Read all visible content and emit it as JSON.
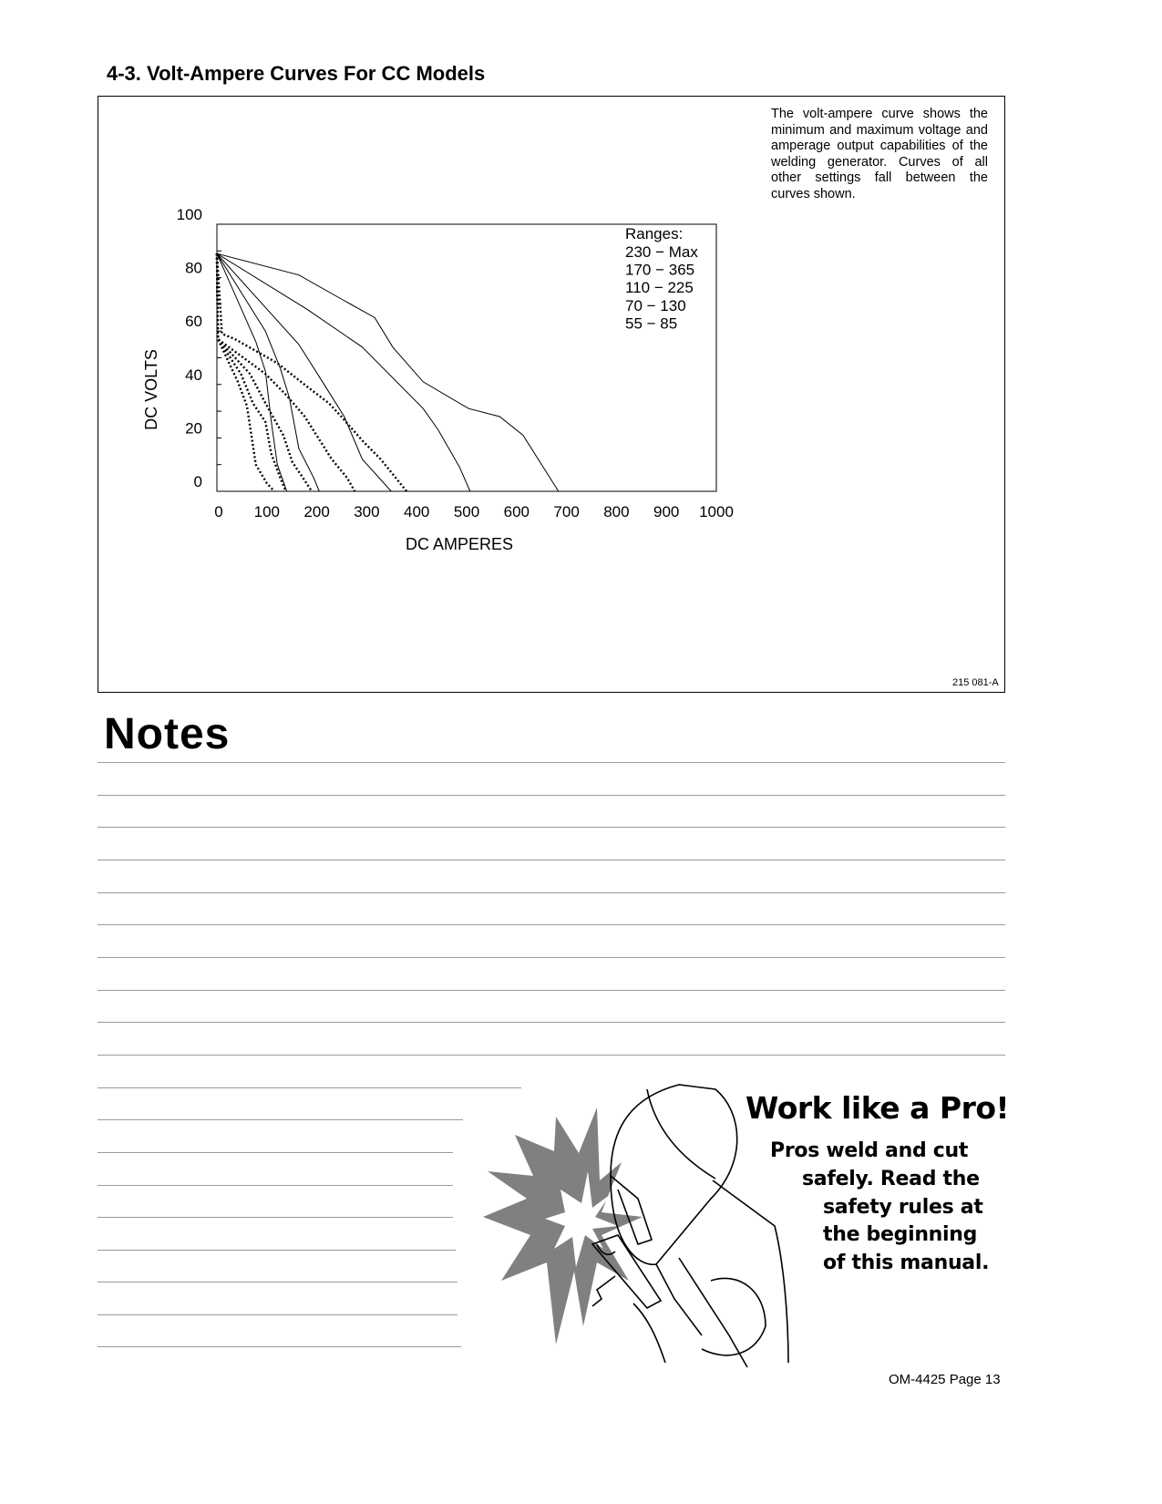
{
  "section_title": "4-3.   Volt-Ampere Curves For CC Models",
  "description": "The volt-ampere curve shows the minimum and maximum voltage and amperage output capabilities of the welding generator. Curves of all other settings fall between the curves shown.",
  "figure_id": "215 081-A",
  "chart_data": {
    "type": "line",
    "xlabel": "DC AMPERES",
    "ylabel": "DC VOLTS",
    "xlim": [
      0,
      1000
    ],
    "ylim": [
      0,
      100
    ],
    "x_ticks": [
      "0",
      "100",
      "200",
      "300",
      "400",
      "500",
      "600",
      "700",
      "800",
      "900",
      "1000"
    ],
    "y_ticks": [
      "100",
      "80",
      "60",
      "40",
      "20",
      "0"
    ],
    "legend_title": "Ranges:",
    "legend": [
      "230 − Max",
      "170 − 365",
      "110 − 225",
      "70 − 130",
      "55 − 85"
    ],
    "grid": false,
    "series": [
      {
        "style": "solid",
        "points": [
          [
            0,
            89
          ],
          [
            164,
            81
          ],
          [
            249,
            72
          ],
          [
            316,
            65
          ],
          [
            352,
            54
          ],
          [
            413,
            41
          ],
          [
            504,
            31
          ],
          [
            566,
            28
          ],
          [
            613,
            21
          ],
          [
            684,
            0
          ]
        ]
      },
      {
        "style": "solid",
        "points": [
          [
            0,
            89
          ],
          [
            182,
            68
          ],
          [
            291,
            54
          ],
          [
            413,
            31
          ],
          [
            443,
            23
          ],
          [
            486,
            9
          ],
          [
            507,
            0
          ]
        ]
      },
      {
        "style": "solid",
        "points": [
          [
            0,
            89
          ],
          [
            164,
            55
          ],
          [
            218,
            39
          ],
          [
            255,
            28
          ],
          [
            291,
            12
          ],
          [
            349,
            0
          ]
        ]
      },
      {
        "style": "solid",
        "points": [
          [
            0,
            89
          ],
          [
            97,
            60
          ],
          [
            127,
            46
          ],
          [
            145,
            35
          ],
          [
            164,
            16
          ],
          [
            194,
            5
          ],
          [
            205,
            0
          ]
        ]
      },
      {
        "style": "solid",
        "points": [
          [
            0,
            89
          ],
          [
            78,
            56
          ],
          [
            97,
            45
          ],
          [
            109,
            26
          ],
          [
            121,
            10
          ],
          [
            140,
            0
          ]
        ]
      },
      {
        "style": "dotted",
        "points": [
          [
            0,
            89
          ],
          [
            10,
            59
          ],
          [
            36,
            57
          ],
          [
            121,
            48
          ],
          [
            182,
            39
          ],
          [
            224,
            33
          ],
          [
            249,
            28
          ],
          [
            291,
            19
          ],
          [
            328,
            12
          ],
          [
            380,
            0
          ]
        ]
      },
      {
        "style": "dotted",
        "points": [
          [
            0,
            89
          ],
          [
            2,
            57
          ],
          [
            97,
            44
          ],
          [
            139,
            36
          ],
          [
            176,
            28
          ],
          [
            230,
            12
          ],
          [
            261,
            5
          ],
          [
            276,
            0
          ]
        ]
      },
      {
        "style": "dotted",
        "points": [
          [
            0,
            89
          ],
          [
            2,
            57
          ],
          [
            66,
            44
          ],
          [
            103,
            31
          ],
          [
            133,
            21
          ],
          [
            151,
            11
          ],
          [
            176,
            4
          ],
          [
            190,
            0
          ]
        ]
      },
      {
        "style": "dotted",
        "points": [
          [
            0,
            89
          ],
          [
            2,
            57
          ],
          [
            48,
            44
          ],
          [
            72,
            33
          ],
          [
            97,
            26
          ],
          [
            109,
            14
          ],
          [
            127,
            5
          ],
          [
            138,
            0
          ]
        ]
      },
      {
        "style": "dotted",
        "points": [
          [
            0,
            89
          ],
          [
            2,
            57
          ],
          [
            42,
            41
          ],
          [
            60,
            32
          ],
          [
            78,
            10
          ],
          [
            100,
            3
          ],
          [
            115,
            0
          ]
        ]
      }
    ]
  },
  "notes_title": "Notes",
  "promo": {
    "title": "Work like a Pro!",
    "lines": [
      "Pros weld and cut",
      "safely. Read the",
      "safety rules at",
      "the beginning",
      "of this manual."
    ]
  },
  "footer": "OM-4425 Page 13",
  "colors": {
    "rule": "#9a9a9a",
    "spark": "#808080"
  }
}
